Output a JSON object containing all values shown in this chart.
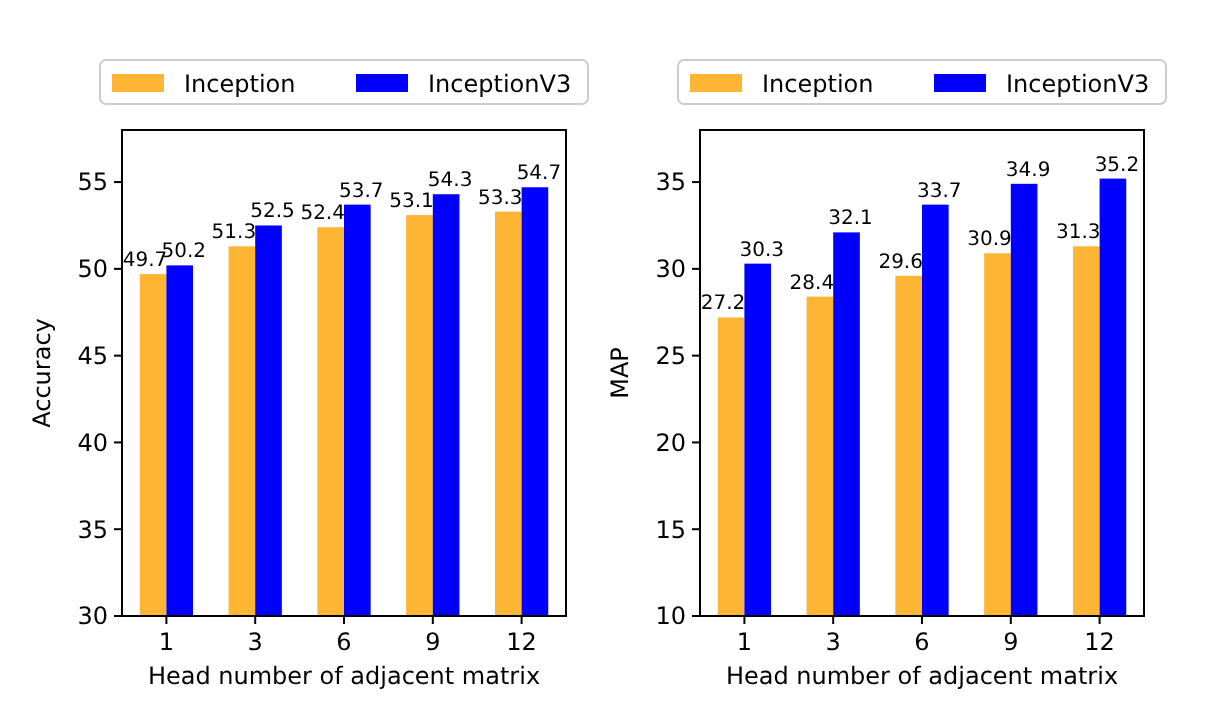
{
  "chart_data": [
    {
      "type": "bar",
      "categories": [
        "1",
        "3",
        "6",
        "9",
        "12"
      ],
      "xlabel": "Head number of adjacent matrix",
      "ylabel": "Accuracy",
      "ylim": [
        30,
        58
      ],
      "yticks": [
        30,
        35,
        40,
        45,
        50,
        55
      ],
      "legend": "top",
      "data_labels": true,
      "series": [
        {
          "name": "Inception",
          "color": "#ffb534",
          "values": [
            49.7,
            51.3,
            52.4,
            53.1,
            53.3
          ]
        },
        {
          "name": "InceptionV3",
          "color": "#0000ff",
          "values": [
            50.2,
            52.5,
            53.7,
            54.3,
            54.7
          ]
        }
      ]
    },
    {
      "type": "bar",
      "categories": [
        "1",
        "3",
        "6",
        "9",
        "12"
      ],
      "xlabel": "Head number of adjacent matrix",
      "ylabel": "MAP",
      "ylim": [
        10,
        38
      ],
      "yticks": [
        10,
        15,
        20,
        25,
        30,
        35
      ],
      "legend": "top",
      "data_labels": true,
      "series": [
        {
          "name": "Inception",
          "color": "#ffb534",
          "values": [
            27.2,
            28.4,
            29.6,
            30.9,
            31.3
          ]
        },
        {
          "name": "InceptionV3",
          "color": "#0000ff",
          "values": [
            30.3,
            32.1,
            33.7,
            34.9,
            35.2
          ]
        }
      ]
    }
  ]
}
